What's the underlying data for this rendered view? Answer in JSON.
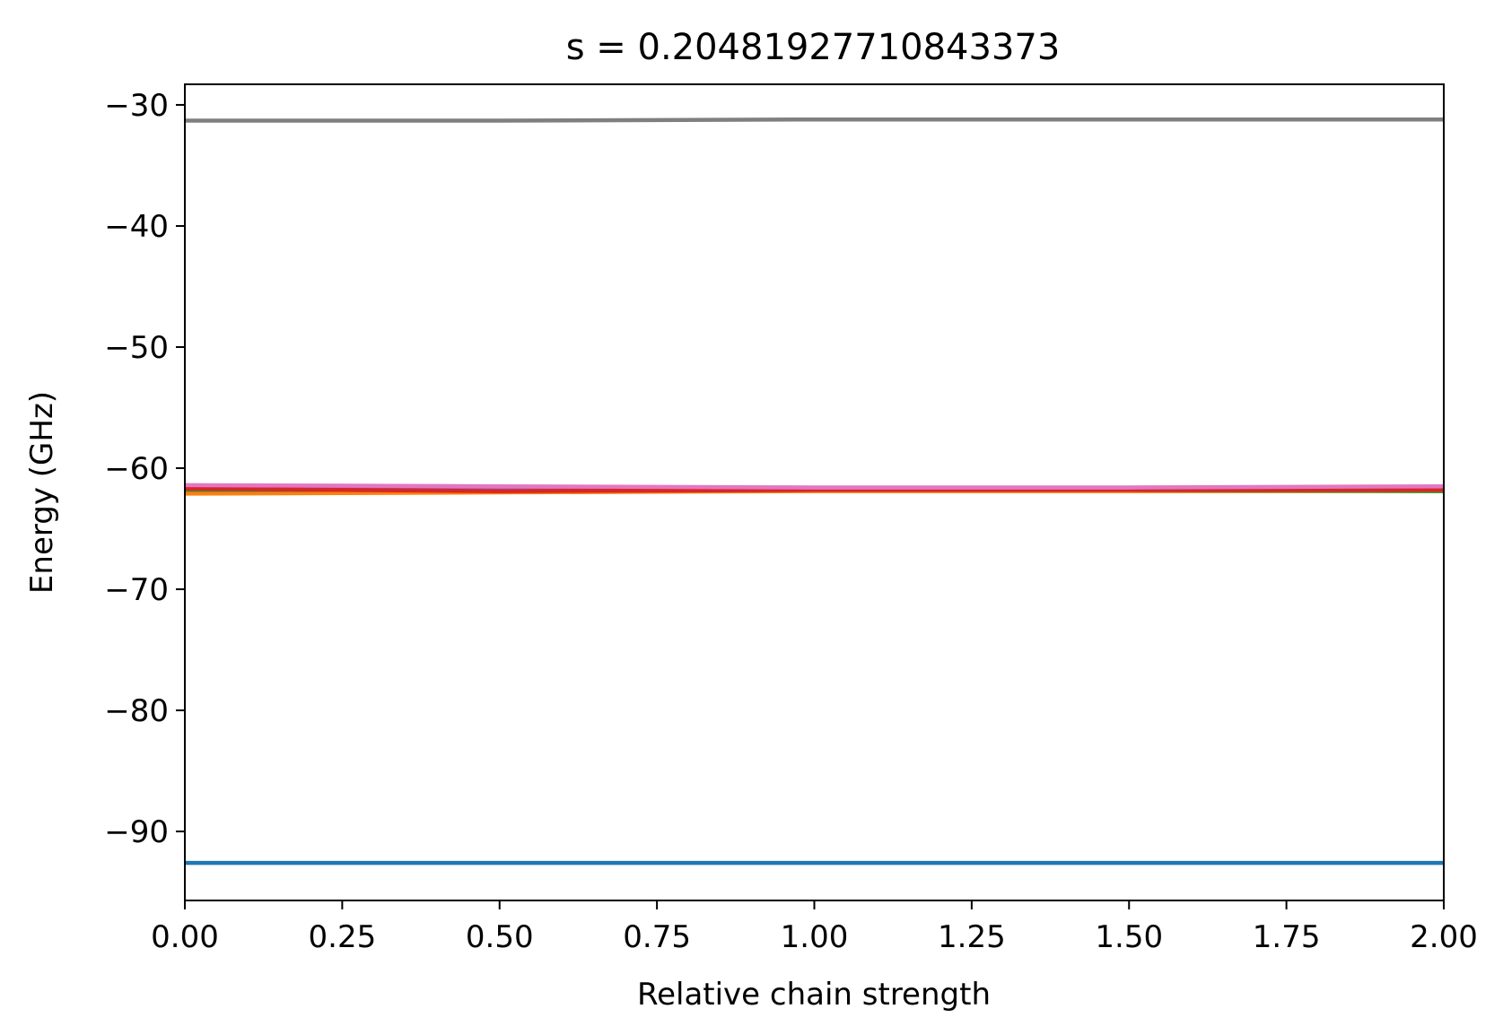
{
  "chart_data": {
    "type": "line",
    "title": "s = 0.20481927710843373",
    "xlabel": "Relative chain strength",
    "ylabel": "Energy (GHz)",
    "xlim": [
      0.0,
      2.0
    ],
    "ylim": [
      -95.7,
      -28.3
    ],
    "xticks": [
      0.0,
      0.25,
      0.5,
      0.75,
      1.0,
      1.25,
      1.5,
      1.75,
      2.0
    ],
    "xtick_labels": [
      "0.00",
      "0.25",
      "0.50",
      "0.75",
      "1.00",
      "1.25",
      "1.50",
      "1.75",
      "2.00"
    ],
    "yticks": [
      -90,
      -80,
      -70,
      -60,
      -50,
      -40,
      -30
    ],
    "ytick_labels": [
      "−90",
      "−80",
      "−70",
      "−60",
      "−50",
      "−40",
      "−30"
    ],
    "grid": false,
    "legend": "none",
    "x": [
      0.0,
      0.5,
      1.0,
      1.5,
      2.0
    ],
    "series": [
      {
        "color": "#1f77b4",
        "values": [
          -92.6,
          -92.6,
          -92.6,
          -92.6,
          -92.6
        ]
      },
      {
        "color": "#ff7f0e",
        "values": [
          -62.1,
          -62.0,
          -61.9,
          -61.9,
          -61.9
        ]
      },
      {
        "color": "#2ca02c",
        "values": [
          -61.8,
          -61.8,
          -61.8,
          -61.8,
          -61.9
        ]
      },
      {
        "color": "#8c564b",
        "values": [
          -61.7,
          -61.8,
          -61.8,
          -61.8,
          -61.8
        ]
      },
      {
        "color": "#9467bd",
        "values": [
          -61.5,
          -61.6,
          -61.6,
          -61.6,
          -61.6
        ]
      },
      {
        "color": "#d62728",
        "values": [
          -61.7,
          -61.9,
          -61.8,
          -61.8,
          -61.8
        ]
      },
      {
        "color": "#e377c2",
        "values": [
          -61.4,
          -61.5,
          -61.6,
          -61.6,
          -61.5
        ]
      },
      {
        "color": "#7f7f7f",
        "values": [
          -31.3,
          -31.3,
          -31.2,
          -31.2,
          -31.2
        ]
      }
    ]
  }
}
